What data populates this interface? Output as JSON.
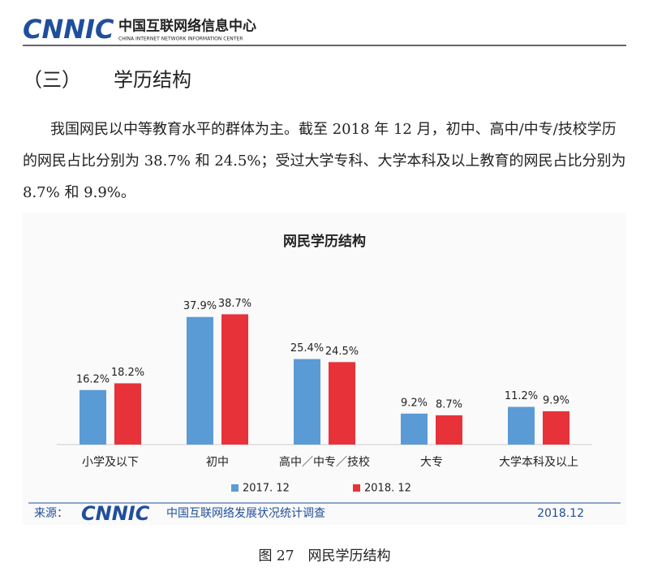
{
  "header": {
    "logo": "CNNIC",
    "org_name": "中国互联网络信息中心",
    "org_name_en": "CHINA INTERNET NETWORK INFORMATION CENTER"
  },
  "section": {
    "number": "（三）",
    "title": "学历结构"
  },
  "paragraph": [
    "我国网民以中等教育水平的群体为主。截至 2018 年 12 月，初中、高中/中专/技校学历",
    "的网民占比分别为 38.7% 和 24.5%；受过大学专科、大学本科及以上教育的网民占比分别为",
    "8.7% 和 9.9%。"
  ],
  "chart_data": {
    "type": "bar",
    "title": "网民学历结构",
    "categories": [
      "小学及以下",
      "初中",
      "高中／中专／技校",
      "大专",
      "大学本科及以上"
    ],
    "series": [
      {
        "name": "2017. 12",
        "color": "#5b9bd5",
        "values": [
          16.2,
          37.9,
          25.4,
          9.2,
          11.2
        ],
        "value_labels": [
          "16.2%",
          "37.9%",
          "25.4%",
          "9.2%",
          "11.2%"
        ]
      },
      {
        "name": "2018. 12",
        "color": "#e8323a",
        "values": [
          18.2,
          38.7,
          24.5,
          8.7,
          9.9
        ],
        "value_labels": [
          "18.2%",
          "38.7%",
          "24.5%",
          "8.7%",
          "9.9%"
        ]
      }
    ]
  },
  "source": {
    "label": "来源：",
    "logo": "CNNIC",
    "text": "中国互联网络发展状况统计调查",
    "date": "2018.12"
  },
  "caption": "图 27　网民学历结构"
}
